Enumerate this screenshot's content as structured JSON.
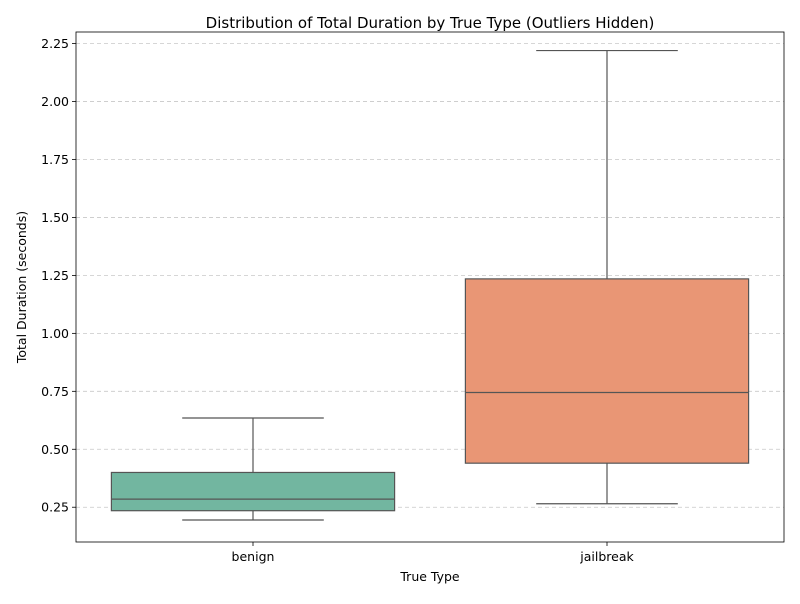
{
  "chart_data": {
    "type": "box",
    "title": "Distribution of Total Duration by True Type (Outliers Hidden)",
    "xlabel": "True Type",
    "ylabel": "Total Duration (seconds)",
    "ylim": [
      0.1,
      2.3
    ],
    "yticks": [
      0.25,
      0.5,
      0.75,
      1.0,
      1.25,
      1.5,
      1.75,
      2.0,
      2.25
    ],
    "ytick_labels": [
      "0.25",
      "0.50",
      "0.75",
      "1.00",
      "1.25",
      "1.50",
      "1.75",
      "2.00",
      "2.25"
    ],
    "grid": "y-dashed",
    "categories": [
      "benign",
      "jailbreak"
    ],
    "boxes": [
      {
        "category": "benign",
        "whisker_low": 0.195,
        "q1": 0.235,
        "median": 0.285,
        "q3": 0.4,
        "whisker_high": 0.635,
        "color": "#72b6a0"
      },
      {
        "category": "jailbreak",
        "whisker_low": 0.265,
        "q1": 0.44,
        "median": 0.745,
        "q3": 1.235,
        "whisker_high": 2.22,
        "color": "#e99675"
      }
    ]
  }
}
